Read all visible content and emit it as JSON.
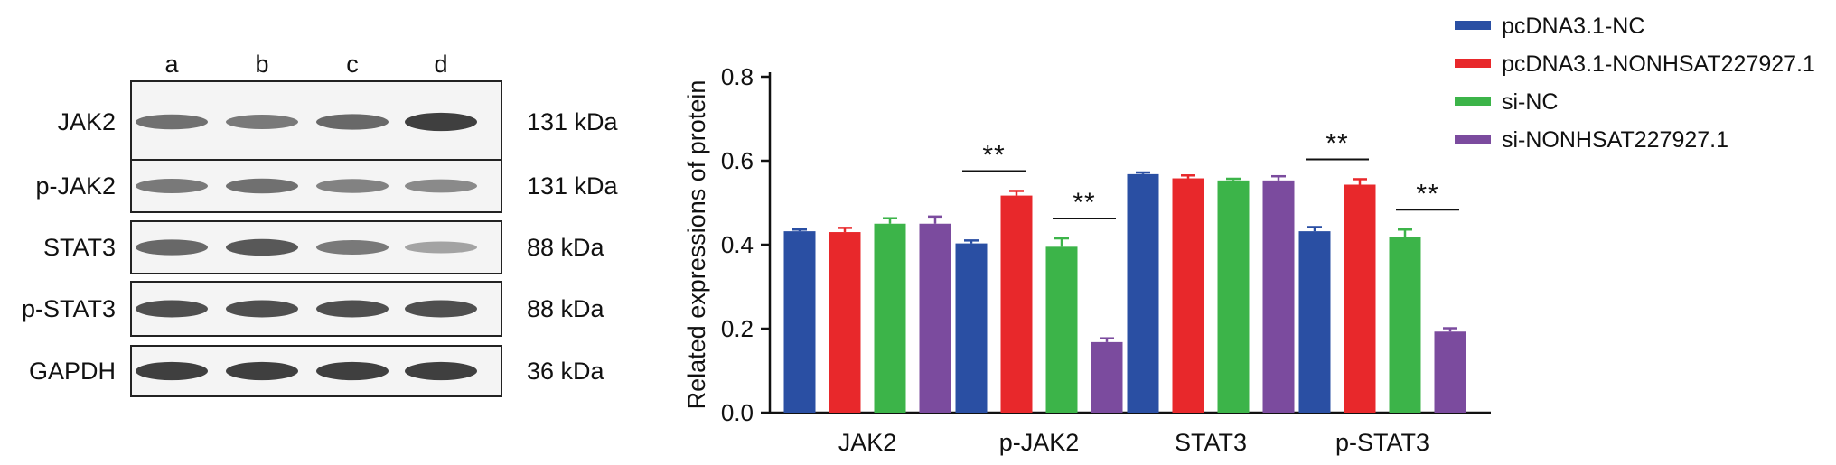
{
  "blot": {
    "lanes": [
      "a",
      "b",
      "c",
      "d"
    ],
    "rows": [
      {
        "label": "JAK2",
        "size": "131 kDa",
        "intensity": [
          0.55,
          0.5,
          0.6,
          0.85
        ]
      },
      {
        "label": "p-JAK2",
        "size": "131 kDa",
        "intensity": [
          0.5,
          0.55,
          0.45,
          0.4
        ]
      },
      {
        "label": "STAT3",
        "size": "88 kDa",
        "intensity": [
          0.6,
          0.7,
          0.5,
          0.25
        ]
      },
      {
        "label": "p-STAT3",
        "size": "88 kDa",
        "intensity": [
          0.75,
          0.75,
          0.75,
          0.75
        ]
      },
      {
        "label": "GAPDH",
        "size": "36 kDa",
        "intensity": [
          0.85,
          0.85,
          0.85,
          0.85
        ]
      }
    ]
  },
  "chart_data": {
    "type": "bar",
    "categories": [
      "JAK2",
      "p-JAK2",
      "STAT3",
      "p-STAT3"
    ],
    "series": [
      {
        "name": "pcDNA3.1-NC",
        "color": "#2a4fa3",
        "values": [
          0.432,
          0.403,
          0.568,
          0.432
        ],
        "errors": [
          0.004,
          0.007,
          0.004,
          0.01
        ]
      },
      {
        "name": "pcDNA3.1-NONHSAT227927.1",
        "color": "#e8282b",
        "values": [
          0.43,
          0.517,
          0.558,
          0.543
        ],
        "errors": [
          0.01,
          0.011,
          0.007,
          0.013
        ]
      },
      {
        "name": "si-NC",
        "color": "#3cb449",
        "values": [
          0.45,
          0.395,
          0.553,
          0.418
        ],
        "errors": [
          0.013,
          0.02,
          0.004,
          0.018
        ]
      },
      {
        "name": "si-NONHSAT227927.1",
        "color": "#7b4b9e",
        "values": [
          0.45,
          0.168,
          0.553,
          0.193
        ],
        "errors": [
          0.017,
          0.009,
          0.01,
          0.008
        ]
      }
    ],
    "significance": [
      {
        "category": "p-JAK2",
        "between": [
          "pcDNA3.1-NC",
          "pcDNA3.1-NONHSAT227927.1"
        ],
        "label": "**"
      },
      {
        "category": "p-JAK2",
        "between": [
          "si-NC",
          "si-NONHSAT227927.1"
        ],
        "label": "**"
      },
      {
        "category": "p-STAT3",
        "between": [
          "pcDNA3.1-NC",
          "pcDNA3.1-NONHSAT227927.1"
        ],
        "label": "**"
      },
      {
        "category": "p-STAT3",
        "between": [
          "si-NC",
          "si-NONHSAT227927.1"
        ],
        "label": "**"
      }
    ],
    "yticks": [
      "0.0",
      "0.2",
      "0.4",
      "0.6",
      "0.8"
    ],
    "ylim": [
      0,
      0.8
    ],
    "ylabel": "Related expressions of protein",
    "xlabel": "",
    "legend_position": "top-right"
  }
}
